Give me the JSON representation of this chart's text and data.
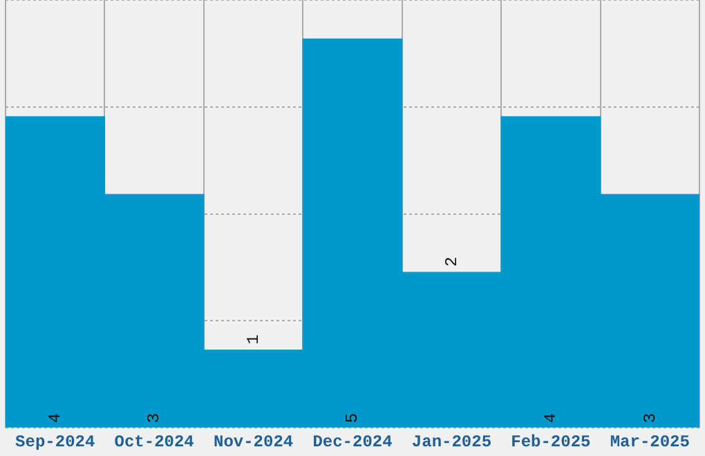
{
  "chart_data": {
    "type": "bar",
    "categories": [
      "Sep-2024",
      "Oct-2024",
      "Nov-2024",
      "Dec-2024",
      "Jan-2025",
      "Feb-2025",
      "Mar-2025"
    ],
    "values": [
      4,
      3,
      1,
      5,
      2,
      4,
      3
    ],
    "color": "#0099cc",
    "ylim": [
      0,
      5.5
    ],
    "yticks": [
      {
        "value": 0,
        "label": null
      },
      {
        "value": 1.375,
        "label": null
      },
      {
        "value": 2.75,
        "label": null
      },
      {
        "value": 4.125,
        "label": null
      },
      {
        "value": 5.5,
        "label": null
      }
    ],
    "grid": true,
    "data_labels": true,
    "tick_labels": "x"
  }
}
